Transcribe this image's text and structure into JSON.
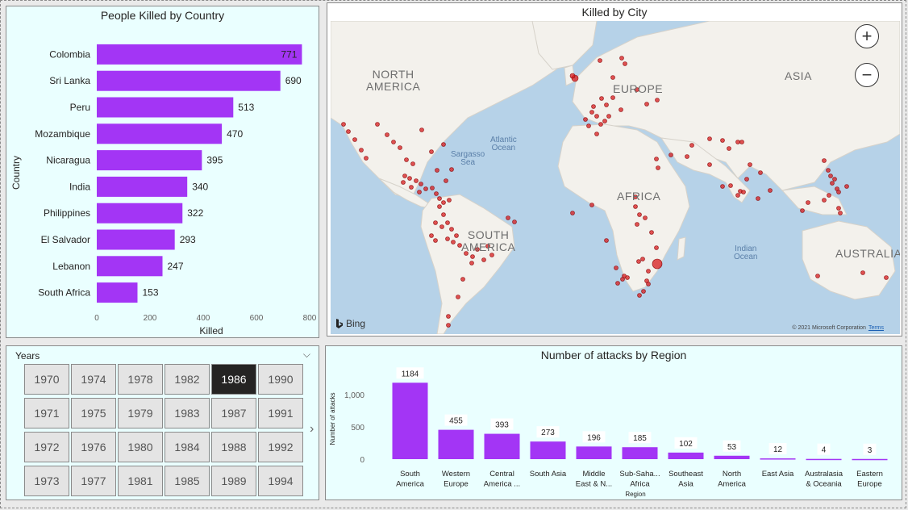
{
  "killed_by_country": {
    "title": "People Killed by Country",
    "chart_data": {
      "type": "bar",
      "orientation": "horizontal",
      "title": "People Killed by Country",
      "ylabel": "Country",
      "xlabel": "Killed",
      "categories": [
        "Colombia",
        "Sri Lanka",
        "Peru",
        "Mozambique",
        "Nicaragua",
        "India",
        "Philippines",
        "El Salvador",
        "Lebanon",
        "South Africa"
      ],
      "values": [
        771,
        690,
        513,
        470,
        395,
        340,
        322,
        293,
        247,
        153
      ],
      "xlim": [
        0,
        800
      ],
      "ticks": [
        "0",
        "200",
        "400",
        "600",
        "800"
      ],
      "bar_color": "#a335f5"
    }
  },
  "map": {
    "title": "Killed by City",
    "labels": {
      "north_america": "NORTH\nAMERICA",
      "europe": "EUROPE",
      "asia": "ASIA",
      "africa": "AFRICA",
      "south_america": "SOUTH\nAMERICA",
      "australia": "AUSTRALIA",
      "atlantic": "Atlantic\nOcean",
      "sargasso": "Sargasso\nSea",
      "indian": "Indian\nOcean"
    },
    "bing": "Bing",
    "copyright": "© 2021 Microsoft Corporation",
    "terms": "Terms",
    "dot_color": "#d7191c"
  },
  "slicer": {
    "title": "Years",
    "selected": "1986",
    "years": [
      [
        "1970",
        "1974",
        "1978",
        "1982",
        "1986",
        "1990"
      ],
      [
        "1971",
        "1975",
        "1979",
        "1983",
        "1987",
        "1991"
      ],
      [
        "1972",
        "1976",
        "1980",
        "1984",
        "1988",
        "1992"
      ],
      [
        "1973",
        "1977",
        "1981",
        "1985",
        "1989",
        "1994"
      ]
    ]
  },
  "attacks_by_region": {
    "title": "Number of attacks by Region",
    "chart_data": {
      "type": "bar",
      "title": "Number of attacks by Region",
      "xlabel": "Region",
      "ylabel": "Number of attacks",
      "categories": [
        [
          "South",
          "America"
        ],
        [
          "Western",
          "Europe"
        ],
        [
          "Central",
          "America ..."
        ],
        [
          "South Asia"
        ],
        [
          "Middle",
          "East & N..."
        ],
        [
          "Sub-Saha...",
          "Africa"
        ],
        [
          "Southeast",
          "Asia"
        ],
        [
          "North",
          "America"
        ],
        [
          "East Asia"
        ],
        [
          "Australasia",
          "& Oceania"
        ],
        [
          "Eastern",
          "Europe"
        ]
      ],
      "values": [
        1184,
        455,
        393,
        273,
        196,
        185,
        102,
        53,
        12,
        4,
        3
      ],
      "ylim": [
        0,
        1250
      ],
      "ticks": [
        "0",
        "500",
        "1,000"
      ],
      "bar_color": "#a335f5"
    }
  }
}
